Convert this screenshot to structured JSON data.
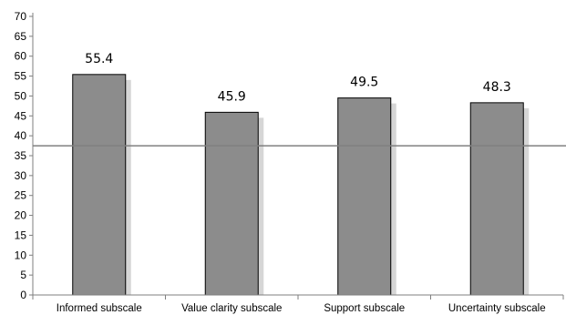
{
  "chart_data": {
    "type": "bar",
    "categories": [
      "Informed subscale",
      "Value clarity subscale",
      "Support subscale",
      "Uncertainty subscale"
    ],
    "values": [
      55.4,
      45.9,
      49.5,
      48.3
    ],
    "data_labels": [
      "55.4",
      "45.9",
      "49.5",
      "48.3"
    ],
    "title": "",
    "xlabel": "",
    "ylabel": "",
    "ylim": [
      0,
      70
    ],
    "yticks": [
      0,
      5,
      10,
      15,
      20,
      25,
      30,
      35,
      40,
      45,
      50,
      55,
      60,
      65,
      70
    ],
    "reference_line": 37.5,
    "grid": false,
    "legend": "none",
    "colors": {
      "bar_fill": "#8c8c8c",
      "bar_stroke": "#000000",
      "bar_shadow": "#d6d6d6",
      "axis": "#7f7f7f",
      "reference_line": "#808080"
    }
  }
}
